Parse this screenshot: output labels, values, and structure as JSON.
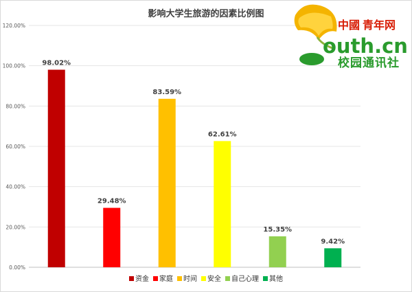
{
  "chart_data": {
    "type": "bar",
    "title": "影响大学生旅游的因素比例图",
    "categories": [
      "资金",
      "家庭",
      "时间",
      "安全",
      "自己心理",
      "其他"
    ],
    "values": [
      98.02,
      29.48,
      83.59,
      62.61,
      15.35,
      9.42
    ],
    "value_labels": [
      "98.02%",
      "29.48%",
      "83.59%",
      "62.61%",
      "15.35%",
      "9.42%"
    ],
    "colors": [
      "#c00000",
      "#ff0000",
      "#ffc000",
      "#ffff00",
      "#92d050",
      "#00b050"
    ],
    "yticks": [
      "0.00%",
      "20.00%",
      "40.00%",
      "60.00%",
      "80.00%",
      "100.00%",
      "120.00%"
    ],
    "ylim": [
      0,
      120
    ],
    "grid": true,
    "legend_position": "bottom",
    "xlabel": "",
    "ylabel": ""
  },
  "logo": {
    "brand_cn": "中國",
    "brand_name": "青年网",
    "domain": "outh.cn",
    "subtitle": "校园通讯社"
  }
}
